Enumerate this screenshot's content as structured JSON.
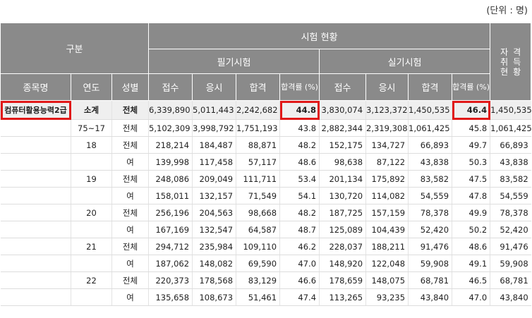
{
  "unit_label": "(단위 : 명)",
  "header": {
    "gubun": "구분",
    "exam_status": "시험 현황",
    "written": "필기시험",
    "practical": "실기시험",
    "cert_holders_chars": [
      "자",
      "격",
      "취",
      "득",
      "현",
      "황"
    ],
    "item_name": "종목명",
    "year": "연도",
    "gender": "성별",
    "applied": "접수",
    "taken": "응시",
    "passed": "합격",
    "pass_rate": "합격률 (%)"
  },
  "item_name": "컴퓨터활용능력2급",
  "subtotal": {
    "year": "소계",
    "gender": "전체",
    "w_applied": "6,339,890",
    "w_taken": "5,011,443",
    "w_passed": "2,242,682",
    "w_rate": "44.8",
    "p_applied": "3,830,074",
    "p_taken": "3,123,372",
    "p_passed": "1,450,535",
    "p_rate": "46.4",
    "holders": "1,450,535"
  },
  "rows": [
    {
      "year": "75~17",
      "gender": "전체",
      "w_applied": "5,102,309",
      "w_taken": "3,998,792",
      "w_passed": "1,751,193",
      "w_rate": "43.8",
      "p_applied": "2,882,344",
      "p_taken": "2,319,308",
      "p_passed": "1,061,425",
      "p_rate": "45.8",
      "holders": "1,061,425"
    },
    {
      "year": "18",
      "gender": "전체",
      "w_applied": "218,214",
      "w_taken": "184,487",
      "w_passed": "88,871",
      "w_rate": "48.2",
      "p_applied": "152,175",
      "p_taken": "134,727",
      "p_passed": "66,893",
      "p_rate": "49.7",
      "holders": "66,893"
    },
    {
      "year": "",
      "gender": "여",
      "w_applied": "139,998",
      "w_taken": "117,458",
      "w_passed": "57,117",
      "w_rate": "48.6",
      "p_applied": "98,638",
      "p_taken": "87,122",
      "p_passed": "43,838",
      "p_rate": "50.3",
      "holders": "43,838"
    },
    {
      "year": "19",
      "gender": "전체",
      "w_applied": "248,086",
      "w_taken": "209,049",
      "w_passed": "111,711",
      "w_rate": "53.4",
      "p_applied": "201,134",
      "p_taken": "175,892",
      "p_passed": "83,582",
      "p_rate": "47.5",
      "holders": "83,582"
    },
    {
      "year": "",
      "gender": "여",
      "w_applied": "158,011",
      "w_taken": "132,157",
      "w_passed": "71,549",
      "w_rate": "54.1",
      "p_applied": "130,720",
      "p_taken": "114,082",
      "p_passed": "54,559",
      "p_rate": "47.8",
      "holders": "54,559"
    },
    {
      "year": "20",
      "gender": "전체",
      "w_applied": "256,196",
      "w_taken": "204,563",
      "w_passed": "98,668",
      "w_rate": "48.2",
      "p_applied": "187,725",
      "p_taken": "157,159",
      "p_passed": "78,378",
      "p_rate": "49.9",
      "holders": "78,378"
    },
    {
      "year": "",
      "gender": "여",
      "w_applied": "167,169",
      "w_taken": "132,547",
      "w_passed": "64,587",
      "w_rate": "48.7",
      "p_applied": "125,089",
      "p_taken": "104,439",
      "p_passed": "52,420",
      "p_rate": "50.2",
      "holders": "52,420"
    },
    {
      "year": "21",
      "gender": "전체",
      "w_applied": "294,712",
      "w_taken": "235,984",
      "w_passed": "109,110",
      "w_rate": "46.2",
      "p_applied": "228,037",
      "p_taken": "188,211",
      "p_passed": "91,476",
      "p_rate": "48.6",
      "holders": "91,476"
    },
    {
      "year": "",
      "gender": "여",
      "w_applied": "187,062",
      "w_taken": "148,082",
      "w_passed": "69,590",
      "w_rate": "47.0",
      "p_applied": "148,920",
      "p_taken": "122,048",
      "p_passed": "59,908",
      "p_rate": "49.1",
      "holders": "59,908"
    },
    {
      "year": "22",
      "gender": "전체",
      "w_applied": "220,373",
      "w_taken": "178,568",
      "w_passed": "83,129",
      "w_rate": "46.6",
      "p_applied": "178,659",
      "p_taken": "148,075",
      "p_passed": "68,781",
      "p_rate": "46.5",
      "holders": "68,781"
    },
    {
      "year": "",
      "gender": "여",
      "w_applied": "135,658",
      "w_taken": "108,673",
      "w_passed": "51,461",
      "w_rate": "47.4",
      "p_applied": "113,265",
      "p_taken": "93,235",
      "p_passed": "43,840",
      "p_rate": "47.0",
      "holders": "43,840"
    }
  ],
  "highlight_color": "#e01818",
  "header_color": "#8a8a8a"
}
